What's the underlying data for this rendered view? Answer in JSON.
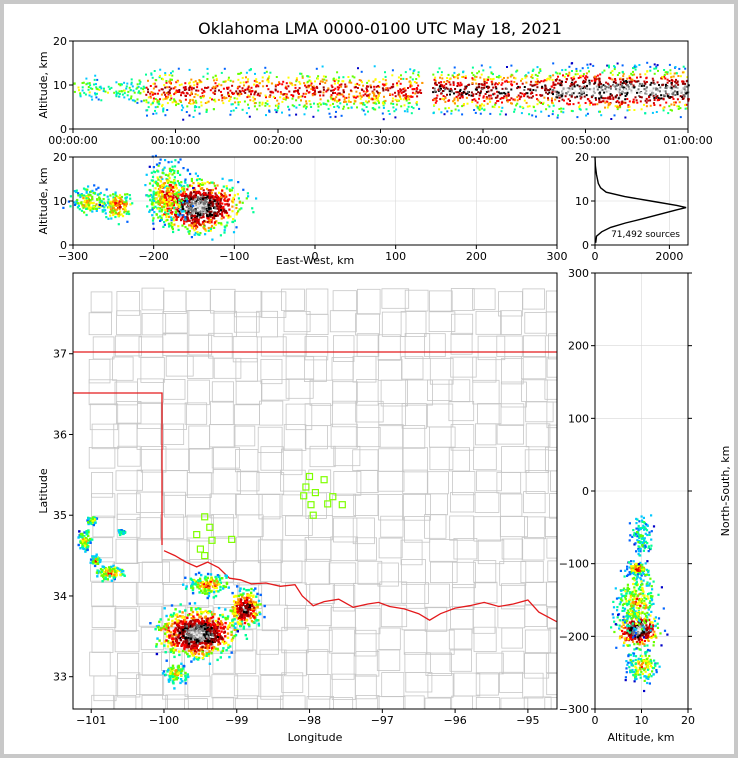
{
  "chart_data": [
    {
      "panel": "time-altitude",
      "type": "heatmap",
      "title": "Oklahoma LMA 0000-0100 UTC May 18, 2021",
      "ylabel": "Altitude, km",
      "ylim": [
        0,
        20
      ],
      "yticks": [
        "0",
        "10",
        "20"
      ],
      "xticks": [
        "00:00:00",
        "00:10:00",
        "00:20:00",
        "00:30:00",
        "00:40:00",
        "00:50:00",
        "01:00:00"
      ],
      "xlim_minutes": [
        0,
        60
      ],
      "bands": [
        {
          "t": [
            0,
            7
          ],
          "alt": [
            6,
            12
          ],
          "density": 0.3
        },
        {
          "t": [
            7,
            34
          ],
          "alt": [
            3,
            14
          ],
          "density": 0.65
        },
        {
          "t": [
            35,
            47
          ],
          "alt": [
            3,
            15
          ],
          "density": 0.8
        },
        {
          "t": [
            47,
            60
          ],
          "alt": [
            3,
            16
          ],
          "density": 1.0
        }
      ]
    },
    {
      "panel": "east-west-altitude",
      "type": "heatmap",
      "xlabel": "East-West, km",
      "ylabel": "Altitude, km",
      "xlim": [
        -300,
        300
      ],
      "ylim": [
        0,
        20
      ],
      "xticks": [
        "−300",
        "−200",
        "−100",
        "0",
        "100",
        "200",
        "300"
      ],
      "yticks": [
        "0",
        "10",
        "20"
      ],
      "clusters": [
        {
          "x": -280,
          "y": 10,
          "rx": 22,
          "ry": 3,
          "density": 0.45
        },
        {
          "x": -245,
          "y": 9,
          "rx": 15,
          "ry": 3,
          "density": 0.6
        },
        {
          "x": -145,
          "y": 9,
          "rx": 45,
          "ry": 5,
          "density": 1.0
        },
        {
          "x": -185,
          "y": 12,
          "rx": 22,
          "ry": 6,
          "density": 0.55
        }
      ]
    },
    {
      "panel": "altitude-histogram",
      "type": "line",
      "note": "71,492 sources",
      "xlim": [
        0,
        2500
      ],
      "ylim": [
        0,
        20
      ],
      "xticks": [
        "0",
        "2000"
      ],
      "yticks": [
        "0",
        "10",
        "20"
      ],
      "alt": [
        0.5,
        2,
        3,
        4,
        5,
        6,
        7,
        8,
        8.5,
        9,
        10,
        11,
        12,
        13,
        14,
        16,
        18,
        20
      ],
      "count": [
        20,
        40,
        180,
        420,
        820,
        1300,
        1750,
        2200,
        2450,
        2200,
        1500,
        800,
        300,
        150,
        90,
        40,
        10,
        0
      ]
    },
    {
      "panel": "plan-view",
      "type": "heatmap",
      "xlabel": "Longitude",
      "ylabel": "Latitude",
      "xlim": [
        -101.25,
        -94.6
      ],
      "ylim": [
        32.6,
        38.0
      ],
      "xticks": [
        "−101",
        "−100",
        "−99",
        "−98",
        "−97",
        "−96",
        "−95"
      ],
      "yticks": [
        "33",
        "34",
        "35",
        "36",
        "37"
      ],
      "clusters": [
        {
          "lon": -99.55,
          "lat": 33.55,
          "rx": 0.45,
          "ry": 0.25,
          "density": 1.0
        },
        {
          "lon": -98.9,
          "lat": 33.85,
          "rx": 0.18,
          "ry": 0.2,
          "density": 0.85
        },
        {
          "lon": -99.4,
          "lat": 34.15,
          "rx": 0.25,
          "ry": 0.12,
          "density": 0.55
        },
        {
          "lon": -99.85,
          "lat": 33.05,
          "rx": 0.15,
          "ry": 0.12,
          "density": 0.45
        },
        {
          "lon": -100.75,
          "lat": 34.3,
          "rx": 0.18,
          "ry": 0.08,
          "density": 0.5
        },
        {
          "lon": -101.1,
          "lat": 34.7,
          "rx": 0.08,
          "ry": 0.12,
          "density": 0.45
        },
        {
          "lon": -100.95,
          "lat": 34.45,
          "rx": 0.06,
          "ry": 0.06,
          "density": 0.45
        },
        {
          "lon": -101.0,
          "lat": 34.95,
          "rx": 0.07,
          "ry": 0.05,
          "density": 0.4
        },
        {
          "lon": -100.6,
          "lat": 34.8,
          "rx": 0.05,
          "ry": 0.03,
          "density": 0.35
        }
      ],
      "stations": [
        [
          -98.0,
          35.48
        ],
        [
          -97.8,
          35.44
        ],
        [
          -98.05,
          35.35
        ],
        [
          -97.92,
          35.28
        ],
        [
          -98.08,
          35.24
        ],
        [
          -97.68,
          35.23
        ],
        [
          -97.98,
          35.13
        ],
        [
          -97.75,
          35.14
        ],
        [
          -97.55,
          35.13
        ],
        [
          -97.95,
          35.0
        ],
        [
          -99.44,
          34.98
        ],
        [
          -99.37,
          34.85
        ],
        [
          -99.55,
          34.76
        ],
        [
          -99.34,
          34.69
        ],
        [
          -99.07,
          34.7
        ],
        [
          -99.5,
          34.58
        ],
        [
          -99.44,
          34.5
        ]
      ],
      "red_river": [
        [
          -100.0,
          34.56
        ],
        [
          -99.85,
          34.5
        ],
        [
          -99.7,
          34.42
        ],
        [
          -99.55,
          34.36
        ],
        [
          -99.4,
          34.42
        ],
        [
          -99.25,
          34.35
        ],
        [
          -99.1,
          34.22
        ],
        [
          -98.95,
          34.2
        ],
        [
          -98.8,
          34.15
        ],
        [
          -98.6,
          34.16
        ],
        [
          -98.4,
          34.12
        ],
        [
          -98.2,
          34.14
        ],
        [
          -98.1,
          34.0
        ],
        [
          -97.95,
          33.88
        ],
        [
          -97.8,
          33.93
        ],
        [
          -97.6,
          33.96
        ],
        [
          -97.4,
          33.86
        ],
        [
          -97.2,
          33.9
        ],
        [
          -97.05,
          33.92
        ],
        [
          -96.9,
          33.87
        ],
        [
          -96.7,
          33.84
        ],
        [
          -96.5,
          33.78
        ],
        [
          -96.35,
          33.7
        ],
        [
          -96.2,
          33.78
        ],
        [
          -96.0,
          33.85
        ],
        [
          -95.8,
          33.88
        ],
        [
          -95.6,
          33.92
        ],
        [
          -95.4,
          33.87
        ],
        [
          -95.2,
          33.9
        ],
        [
          -95.0,
          33.95
        ],
        [
          -94.85,
          33.8
        ],
        [
          -94.6,
          33.68
        ]
      ]
    },
    {
      "panel": "altitude-north-south",
      "type": "heatmap",
      "xlabel": "Altitude, km",
      "ylabel": "North-South, km",
      "xlim": [
        0,
        20
      ],
      "ylim": [
        -300,
        300
      ],
      "xticks": [
        "0",
        "10",
        "20"
      ],
      "yticks": [
        "−300",
        "−200",
        "−100",
        "0",
        "100",
        "200",
        "300"
      ],
      "clusters": [
        {
          "x": 9,
          "y": -190,
          "rx": 4,
          "ry": 20,
          "density": 1.0
        },
        {
          "x": 9,
          "y": -105,
          "rx": 2,
          "ry": 8,
          "density": 0.6
        },
        {
          "x": 9,
          "y": -150,
          "rx": 4,
          "ry": 40,
          "density": 0.45
        },
        {
          "x": 10,
          "y": -240,
          "rx": 3,
          "ry": 20,
          "density": 0.45
        },
        {
          "x": 10,
          "y": -60,
          "rx": 2,
          "ry": 25,
          "density": 0.3
        }
      ]
    }
  ]
}
